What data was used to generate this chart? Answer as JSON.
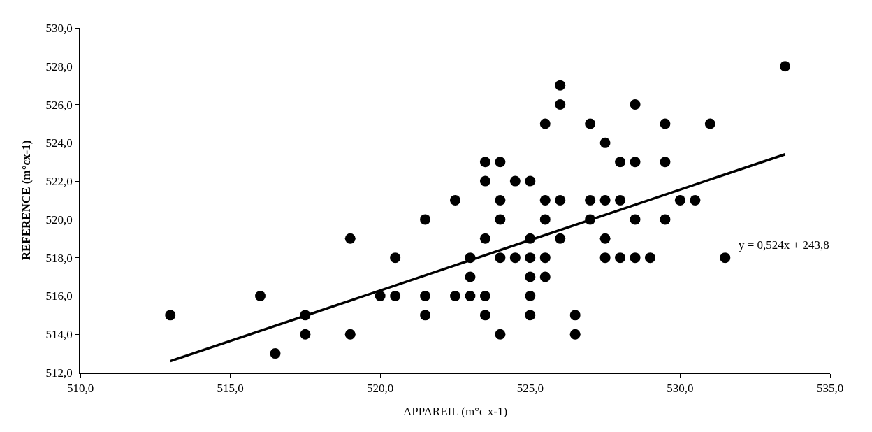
{
  "chart_data": {
    "type": "scatter",
    "xlabel": "APPAREIL (m°c x-1)",
    "ylabel": "REFERENCE (m°cx-1)",
    "annotations": [
      "y = 0,524x + 243,8"
    ],
    "grid": false,
    "marker": "circle",
    "xlim": [
      510,
      535
    ],
    "xticks": [
      {
        "value": 510,
        "label": "510,0"
      },
      {
        "value": 515,
        "label": "515,0"
      },
      {
        "value": 520,
        "label": "520,0"
      },
      {
        "value": 525,
        "label": "525,0"
      },
      {
        "value": 530,
        "label": "530,0"
      },
      {
        "value": 535,
        "label": "535,0"
      }
    ],
    "ylim": [
      512,
      530
    ],
    "yticks": [
      {
        "value": 512,
        "label": "512,0"
      },
      {
        "value": 514,
        "label": "514,0"
      },
      {
        "value": 516,
        "label": "516,0"
      },
      {
        "value": 518,
        "label": "518,0"
      },
      {
        "value": 520,
        "label": "520,0"
      },
      {
        "value": 522,
        "label": "522,0"
      },
      {
        "value": 524,
        "label": "524,0"
      },
      {
        "value": 526,
        "label": "526,0"
      },
      {
        "value": 528,
        "label": "528,0"
      },
      {
        "value": 530,
        "label": "530,0"
      }
    ],
    "series": [
      {
        "color": "#000000",
        "x": [
          513,
          516,
          516.5,
          517.5,
          517.5,
          519,
          519,
          520,
          520.5,
          520.5,
          521.5,
          521.5,
          521.5,
          522.5,
          522.5,
          523,
          523,
          523,
          523.5,
          523.5,
          523.5,
          523.5,
          523.5,
          524,
          524,
          524,
          524,
          524,
          524.5,
          524.5,
          525,
          525,
          525,
          525,
          525,
          525,
          525.5,
          525.5,
          525.5,
          525.5,
          525.5,
          526,
          526,
          526,
          526,
          526.5,
          526.5,
          527,
          527,
          527,
          527.5,
          527.5,
          527.5,
          527.5,
          528,
          528,
          528,
          528.5,
          528.5,
          528.5,
          528.5,
          529,
          529.5,
          529.5,
          529.5,
          530,
          530.5,
          531,
          531.5,
          533.5
        ],
        "values": [
          515,
          516,
          513,
          515,
          514,
          519,
          514,
          516,
          518,
          516,
          520,
          516,
          515,
          521,
          516,
          518,
          517,
          516,
          523,
          522,
          519,
          516,
          515,
          523,
          521,
          520,
          518,
          514,
          522,
          518,
          522,
          519,
          518,
          517,
          516,
          515,
          525,
          521,
          520,
          518,
          517,
          527,
          526,
          521,
          519,
          515,
          514,
          525,
          521,
          520,
          524,
          521,
          519,
          518,
          523,
          521,
          518,
          526,
          523,
          520,
          518,
          518,
          525,
          523,
          520,
          521,
          521,
          525,
          518,
          528
        ]
      },
      {
        "type": "line",
        "color": "#000000",
        "marker": "none",
        "line_style": "solid",
        "x": [
          513,
          533.5
        ],
        "values": [
          512.6,
          523.4
        ]
      }
    ]
  }
}
